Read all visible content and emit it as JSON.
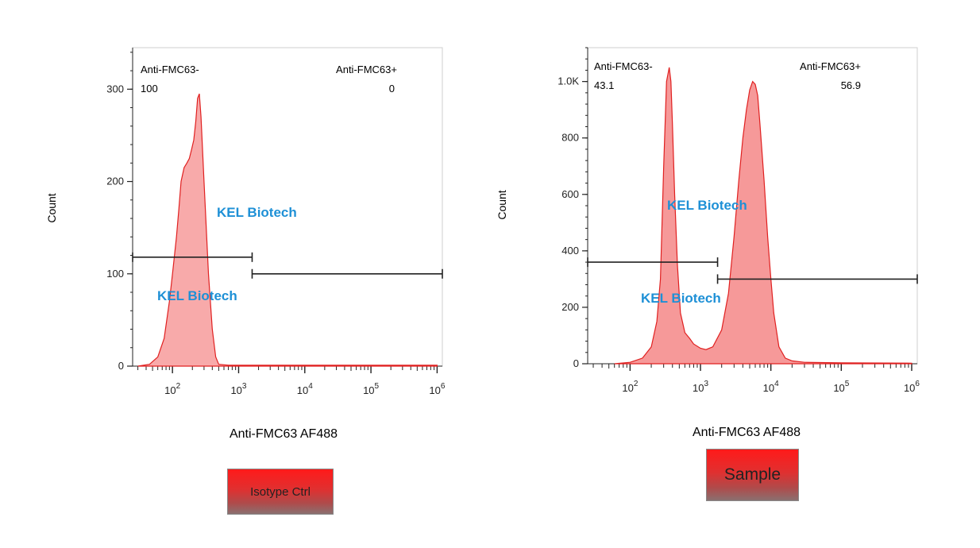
{
  "chart_data": [
    {
      "type": "area",
      "xlabel": "Anti-FMC63 AF488",
      "ylabel": "Count",
      "x_scale": "log",
      "xlim": [
        25,
        1200000
      ],
      "ylim": [
        0,
        345
      ],
      "x_ticks": [
        "10^2",
        "10^3",
        "10^4",
        "10^5",
        "10^6"
      ],
      "y_ticks": [
        "0",
        "100",
        "200",
        "300"
      ],
      "series": [
        {
          "x": [
            30,
            45,
            60,
            75,
            90,
            100,
            115,
            125,
            135,
            150,
            165,
            180,
            195,
            210,
            225,
            240,
            255,
            270,
            300,
            350,
            400,
            450,
            500,
            700,
            1000,
            10000,
            1000000
          ],
          "values": [
            0,
            2,
            10,
            30,
            70,
            100,
            140,
            170,
            200,
            215,
            220,
            225,
            235,
            245,
            265,
            290,
            295,
            270,
            200,
            100,
            40,
            10,
            2,
            1,
            1,
            1,
            1
          ]
        }
      ],
      "gates": [
        {
          "label": "Anti-FMC63-",
          "value": "100",
          "from": 25,
          "to": 1600,
          "y": 118
        },
        {
          "label": "Anti-FMC63+",
          "value": "0",
          "from": 1600,
          "to": 1200000,
          "y": 100
        }
      ],
      "watermarks": [
        "KEL Biotech",
        "KEL Biotech"
      ],
      "legend": "Isotype Ctrl"
    },
    {
      "type": "area",
      "xlabel": "Anti-FMC63 AF488",
      "ylabel": "Count",
      "x_scale": "log",
      "xlim": [
        25,
        1200000
      ],
      "ylim": [
        0,
        1120
      ],
      "x_ticks": [
        "10^2",
        "10^3",
        "10^4",
        "10^5",
        "10^6"
      ],
      "y_ticks": [
        "0",
        "200",
        "400",
        "600",
        "800",
        "1.0K"
      ],
      "series": [
        {
          "x": [
            60,
            100,
            150,
            200,
            240,
            270,
            300,
            330,
            360,
            380,
            400,
            430,
            470,
            520,
            600,
            700,
            800,
            1000,
            1200,
            1500,
            2000,
            2500,
            3000,
            3500,
            4000,
            4500,
            5000,
            5500,
            6000,
            6500,
            7000,
            8000,
            9000,
            10000,
            11000,
            13000,
            16000,
            20000,
            30000,
            100000,
            1000000
          ],
          "values": [
            0,
            5,
            20,
            60,
            150,
            300,
            700,
            1000,
            1050,
            1000,
            850,
            600,
            350,
            180,
            110,
            90,
            70,
            55,
            50,
            60,
            120,
            250,
            450,
            650,
            800,
            900,
            970,
            1000,
            990,
            950,
            850,
            650,
            450,
            300,
            180,
            60,
            20,
            10,
            5,
            3,
            2
          ]
        }
      ],
      "gates": [
        {
          "label": "Anti-FMC63-",
          "value": "43.1",
          "from": 25,
          "to": 1750,
          "y": 360
        },
        {
          "label": "Anti-FMC63+",
          "value": "56.9",
          "from": 1750,
          "to": 1200000,
          "y": 300
        }
      ],
      "watermarks": [
        "KEL Biotech",
        "KEL Biotech"
      ],
      "legend": "Sample"
    }
  ],
  "colors": {
    "fill": "#f58e8e",
    "stroke": "#e02020",
    "watermark": "#1e90d6",
    "axis": "#222222"
  }
}
